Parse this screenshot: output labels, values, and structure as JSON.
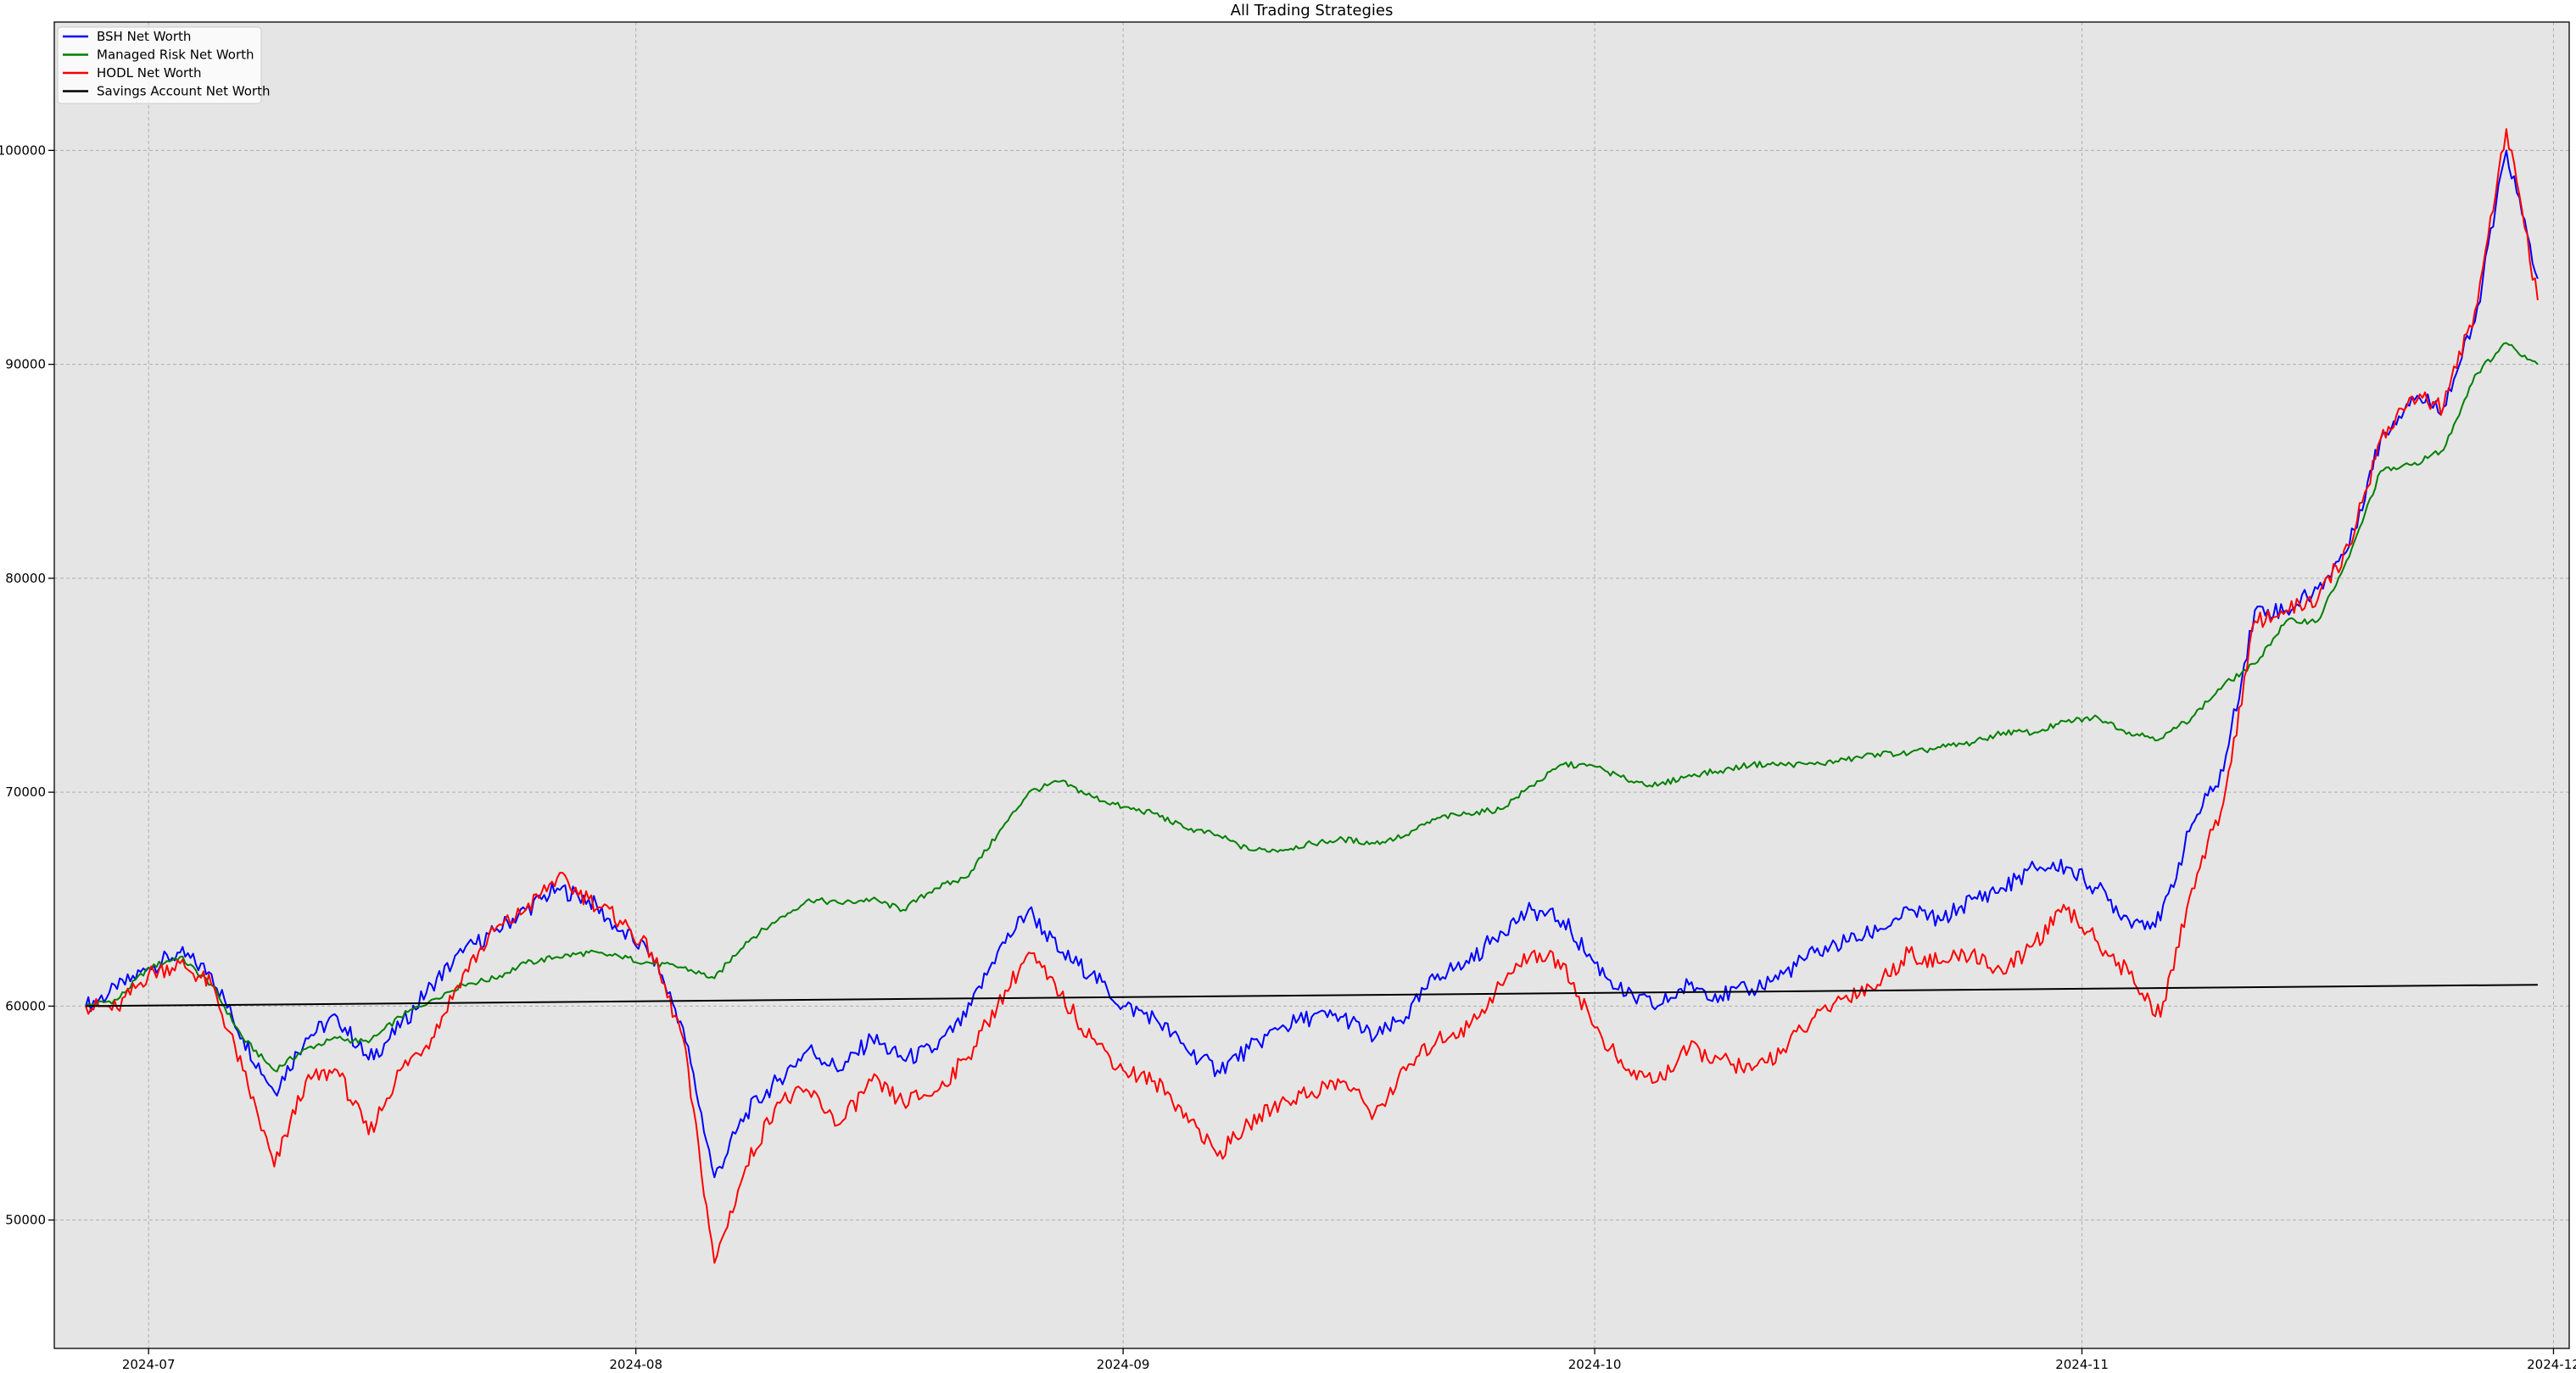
{
  "chart_data": {
    "type": "line",
    "title": "All Trading Strategies",
    "xlabel": "",
    "ylabel": "",
    "x_range": [
      "2024-06-25",
      "2024-12-02"
    ],
    "ylim": [
      44000,
      106000
    ],
    "grid": true,
    "legend_position": "top-left",
    "x_ticks": [
      "2024-07",
      "2024-08",
      "2024-09",
      "2024-10",
      "2024-11",
      "2024-12"
    ],
    "y_ticks": [
      50000,
      60000,
      70000,
      80000,
      90000,
      100000
    ],
    "series": [
      {
        "name": "BSH Net Worth",
        "color": "#0000ff",
        "points": [
          [
            "2024-06-27",
            60000
          ],
          [
            "2024-06-29",
            60800
          ],
          [
            "2024-07-01",
            61800
          ],
          [
            "2024-07-03",
            62500
          ],
          [
            "2024-07-05",
            61500
          ],
          [
            "2024-07-07",
            58500
          ],
          [
            "2024-07-09",
            56000
          ],
          [
            "2024-07-11",
            58500
          ],
          [
            "2024-07-13",
            59500
          ],
          [
            "2024-07-15",
            57500
          ],
          [
            "2024-07-17",
            59000
          ],
          [
            "2024-07-19",
            61000
          ],
          [
            "2024-07-21",
            62500
          ],
          [
            "2024-07-23",
            63500
          ],
          [
            "2024-07-25",
            64500
          ],
          [
            "2024-07-27",
            65500
          ],
          [
            "2024-07-29",
            65000
          ],
          [
            "2024-07-31",
            63500
          ],
          [
            "2024-08-02",
            62500
          ],
          [
            "2024-08-04",
            59000
          ],
          [
            "2024-08-06",
            52000
          ],
          [
            "2024-08-08",
            55000
          ],
          [
            "2024-08-10",
            56500
          ],
          [
            "2024-08-12",
            58000
          ],
          [
            "2024-08-14",
            57000
          ],
          [
            "2024-08-16",
            58500
          ],
          [
            "2024-08-18",
            57500
          ],
          [
            "2024-08-20",
            58000
          ],
          [
            "2024-08-22",
            59500
          ],
          [
            "2024-08-24",
            62500
          ],
          [
            "2024-08-26",
            64500
          ],
          [
            "2024-08-28",
            62500
          ],
          [
            "2024-08-30",
            61500
          ],
          [
            "2024-09-01",
            60000
          ],
          [
            "2024-09-03",
            59500
          ],
          [
            "2024-09-05",
            58000
          ],
          [
            "2024-09-07",
            57000
          ],
          [
            "2024-09-09",
            58000
          ],
          [
            "2024-09-11",
            59000
          ],
          [
            "2024-09-13",
            59500
          ],
          [
            "2024-09-15",
            59500
          ],
          [
            "2024-09-17",
            58500
          ],
          [
            "2024-09-19",
            59500
          ],
          [
            "2024-09-21",
            61500
          ],
          [
            "2024-09-23",
            62000
          ],
          [
            "2024-09-25",
            63500
          ],
          [
            "2024-09-27",
            64500
          ],
          [
            "2024-09-29",
            64000
          ],
          [
            "2024-10-01",
            62000
          ],
          [
            "2024-10-03",
            60500
          ],
          [
            "2024-10-05",
            60000
          ],
          [
            "2024-10-07",
            61000
          ],
          [
            "2024-10-09",
            60500
          ],
          [
            "2024-10-11",
            60800
          ],
          [
            "2024-10-13",
            61500
          ],
          [
            "2024-10-15",
            62500
          ],
          [
            "2024-10-17",
            63000
          ],
          [
            "2024-10-19",
            63500
          ],
          [
            "2024-10-21",
            64500
          ],
          [
            "2024-10-23",
            64000
          ],
          [
            "2024-10-25",
            65000
          ],
          [
            "2024-10-27",
            65500
          ],
          [
            "2024-10-29",
            66500
          ],
          [
            "2024-10-31",
            66500
          ],
          [
            "2024-11-02",
            65500
          ],
          [
            "2024-11-04",
            64000
          ],
          [
            "2024-11-06",
            64000
          ],
          [
            "2024-11-08",
            68500
          ],
          [
            "2024-11-10",
            71000
          ],
          [
            "2024-11-12",
            78500
          ],
          [
            "2024-11-14",
            78500
          ],
          [
            "2024-11-16",
            79500
          ],
          [
            "2024-11-18",
            81500
          ],
          [
            "2024-11-20",
            86500
          ],
          [
            "2024-11-22",
            88500
          ],
          [
            "2024-11-24",
            88000
          ],
          [
            "2024-11-26",
            92000
          ],
          [
            "2024-11-28",
            100000
          ],
          [
            "2024-11-30",
            94000
          ]
        ]
      },
      {
        "name": "Managed Risk Net Worth",
        "color": "#008000",
        "points": [
          [
            "2024-06-27",
            60000
          ],
          [
            "2024-06-29",
            60300
          ],
          [
            "2024-07-01",
            61800
          ],
          [
            "2024-07-03",
            62300
          ],
          [
            "2024-07-05",
            61000
          ],
          [
            "2024-07-07",
            58500
          ],
          [
            "2024-07-09",
            57000
          ],
          [
            "2024-07-11",
            58000
          ],
          [
            "2024-07-13",
            58500
          ],
          [
            "2024-07-15",
            58300
          ],
          [
            "2024-07-17",
            59500
          ],
          [
            "2024-07-19",
            60300
          ],
          [
            "2024-07-21",
            61000
          ],
          [
            "2024-07-23",
            61300
          ],
          [
            "2024-07-25",
            62000
          ],
          [
            "2024-07-27",
            62300
          ],
          [
            "2024-07-29",
            62500
          ],
          [
            "2024-07-31",
            62300
          ],
          [
            "2024-08-02",
            62000
          ],
          [
            "2024-08-04",
            61800
          ],
          [
            "2024-08-06",
            61300
          ],
          [
            "2024-08-08",
            63000
          ],
          [
            "2024-08-10",
            64000
          ],
          [
            "2024-08-12",
            65000
          ],
          [
            "2024-08-14",
            64800
          ],
          [
            "2024-08-16",
            65000
          ],
          [
            "2024-08-18",
            64500
          ],
          [
            "2024-08-20",
            65500
          ],
          [
            "2024-08-22",
            66000
          ],
          [
            "2024-08-24",
            68000
          ],
          [
            "2024-08-26",
            70000
          ],
          [
            "2024-08-28",
            70500
          ],
          [
            "2024-08-30",
            69800
          ],
          [
            "2024-09-01",
            69300
          ],
          [
            "2024-09-03",
            69000
          ],
          [
            "2024-09-05",
            68300
          ],
          [
            "2024-09-07",
            68000
          ],
          [
            "2024-09-09",
            67300
          ],
          [
            "2024-09-11",
            67300
          ],
          [
            "2024-09-13",
            67600
          ],
          [
            "2024-09-15",
            67800
          ],
          [
            "2024-09-17",
            67600
          ],
          [
            "2024-09-19",
            68000
          ],
          [
            "2024-09-21",
            68800
          ],
          [
            "2024-09-23",
            69000
          ],
          [
            "2024-09-25",
            69200
          ],
          [
            "2024-09-27",
            70300
          ],
          [
            "2024-09-29",
            71300
          ],
          [
            "2024-10-01",
            71200
          ],
          [
            "2024-10-03",
            70600
          ],
          [
            "2024-10-05",
            70300
          ],
          [
            "2024-10-07",
            70800
          ],
          [
            "2024-10-09",
            71000
          ],
          [
            "2024-10-11",
            71300
          ],
          [
            "2024-10-13",
            71300
          ],
          [
            "2024-10-15",
            71300
          ],
          [
            "2024-10-17",
            71500
          ],
          [
            "2024-10-19",
            71800
          ],
          [
            "2024-10-21",
            71800
          ],
          [
            "2024-10-23",
            72100
          ],
          [
            "2024-10-25",
            72300
          ],
          [
            "2024-10-27",
            72800
          ],
          [
            "2024-10-29",
            72800
          ],
          [
            "2024-10-31",
            73300
          ],
          [
            "2024-11-02",
            73500
          ],
          [
            "2024-11-04",
            72800
          ],
          [
            "2024-11-06",
            72500
          ],
          [
            "2024-11-08",
            73500
          ],
          [
            "2024-11-10",
            75000
          ],
          [
            "2024-11-12",
            76000
          ],
          [
            "2024-11-14",
            78000
          ],
          [
            "2024-11-16",
            78000
          ],
          [
            "2024-11-18",
            81000
          ],
          [
            "2024-11-20",
            85000
          ],
          [
            "2024-11-22",
            85300
          ],
          [
            "2024-11-24",
            86000
          ],
          [
            "2024-11-26",
            89500
          ],
          [
            "2024-11-28",
            91000
          ],
          [
            "2024-11-30",
            90000
          ]
        ]
      },
      {
        "name": "HODL Net Worth",
        "color": "#ff0000",
        "points": [
          [
            "2024-06-27",
            60000
          ],
          [
            "2024-06-29",
            59900
          ],
          [
            "2024-07-01",
            61500
          ],
          [
            "2024-07-03",
            62000
          ],
          [
            "2024-07-05",
            61000
          ],
          [
            "2024-07-07",
            57000
          ],
          [
            "2024-07-09",
            52500
          ],
          [
            "2024-07-11",
            56500
          ],
          [
            "2024-07-13",
            57000
          ],
          [
            "2024-07-15",
            54000
          ],
          [
            "2024-07-17",
            57000
          ],
          [
            "2024-07-19",
            58500
          ],
          [
            "2024-07-21",
            61500
          ],
          [
            "2024-07-23",
            63500
          ],
          [
            "2024-07-25",
            64500
          ],
          [
            "2024-07-27",
            66000
          ],
          [
            "2024-07-29",
            65000
          ],
          [
            "2024-07-31",
            64000
          ],
          [
            "2024-08-02",
            62500
          ],
          [
            "2024-08-04",
            58500
          ],
          [
            "2024-08-06",
            48000
          ],
          [
            "2024-08-08",
            52500
          ],
          [
            "2024-08-10",
            55500
          ],
          [
            "2024-08-12",
            56000
          ],
          [
            "2024-08-14",
            54500
          ],
          [
            "2024-08-16",
            56500
          ],
          [
            "2024-08-18",
            55500
          ],
          [
            "2024-08-20",
            56000
          ],
          [
            "2024-08-22",
            57500
          ],
          [
            "2024-08-24",
            60000
          ],
          [
            "2024-08-26",
            62500
          ],
          [
            "2024-08-28",
            60500
          ],
          [
            "2024-08-30",
            58500
          ],
          [
            "2024-09-01",
            57000
          ],
          [
            "2024-09-03",
            56500
          ],
          [
            "2024-09-05",
            55000
          ],
          [
            "2024-09-07",
            53000
          ],
          [
            "2024-09-09",
            54500
          ],
          [
            "2024-09-11",
            55500
          ],
          [
            "2024-09-13",
            56000
          ],
          [
            "2024-09-15",
            56500
          ],
          [
            "2024-09-17",
            55000
          ],
          [
            "2024-09-19",
            57000
          ],
          [
            "2024-09-21",
            58500
          ],
          [
            "2024-09-23",
            59000
          ],
          [
            "2024-09-25",
            61000
          ],
          [
            "2024-09-27",
            62500
          ],
          [
            "2024-09-29",
            62000
          ],
          [
            "2024-10-01",
            59000
          ],
          [
            "2024-10-03",
            57000
          ],
          [
            "2024-10-05",
            56500
          ],
          [
            "2024-10-07",
            58000
          ],
          [
            "2024-10-09",
            57500
          ],
          [
            "2024-10-11",
            57000
          ],
          [
            "2024-10-13",
            58000
          ],
          [
            "2024-10-15",
            59500
          ],
          [
            "2024-10-17",
            60500
          ],
          [
            "2024-10-19",
            61000
          ],
          [
            "2024-10-21",
            62500
          ],
          [
            "2024-10-23",
            62000
          ],
          [
            "2024-10-25",
            62500
          ],
          [
            "2024-10-27",
            61500
          ],
          [
            "2024-10-29",
            63000
          ],
          [
            "2024-10-31",
            64500
          ],
          [
            "2024-11-02",
            63000
          ],
          [
            "2024-11-04",
            61500
          ],
          [
            "2024-11-06",
            59500
          ],
          [
            "2024-11-08",
            65500
          ],
          [
            "2024-11-10",
            69500
          ],
          [
            "2024-11-12",
            78000
          ],
          [
            "2024-11-14",
            78500
          ],
          [
            "2024-11-16",
            79000
          ],
          [
            "2024-11-18",
            81500
          ],
          [
            "2024-11-20",
            86500
          ],
          [
            "2024-11-22",
            88500
          ],
          [
            "2024-11-24",
            88000
          ],
          [
            "2024-11-26",
            92500
          ],
          [
            "2024-11-28",
            101000
          ],
          [
            "2024-11-30",
            93000
          ]
        ]
      },
      {
        "name": "Savings Account Net Worth",
        "color": "#000000",
        "points": [
          [
            "2024-06-27",
            60000
          ],
          [
            "2024-11-30",
            61000
          ]
        ]
      }
    ]
  }
}
